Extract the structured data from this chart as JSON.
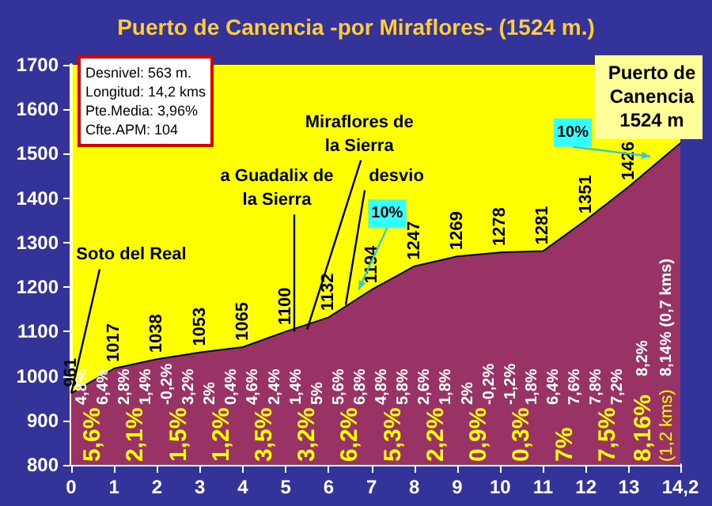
{
  "chart_data": {
    "type": "area",
    "title": "Puerto de Canencia -por Miraflores- (1524 m.)",
    "x": [
      0,
      1,
      2,
      3,
      4,
      5,
      6,
      7,
      8,
      9,
      10,
      11,
      12,
      13,
      14.2
    ],
    "values": [
      961,
      1017,
      1038,
      1053,
      1065,
      1100,
      1132,
      1194,
      1247,
      1269,
      1278,
      1281,
      1351,
      1426,
      1524
    ],
    "value_labels": [
      "961",
      "1017",
      "1038",
      "1053",
      "1065",
      "1100",
      "1132",
      "1194",
      "1247",
      "1269",
      "1278",
      "1281",
      "1351",
      "1426",
      null
    ],
    "color": "#993366",
    "xlim": [
      0,
      14.2
    ],
    "xticks": [
      0,
      1,
      2,
      3,
      4,
      5,
      6,
      7,
      8,
      9,
      10,
      11,
      12,
      13,
      {
        "value": 14.2,
        "label": "14,2"
      }
    ],
    "ylim": [
      800,
      1700
    ],
    "yticks": [
      800,
      900,
      1000,
      1100,
      1200,
      1300,
      1400,
      1500,
      1600,
      1700
    ],
    "annotations": [
      "Desnivel:   563 m.",
      "Longitud: 14,2 kms",
      "Pte.Media:  3,96%",
      "Cfte.APM: 104",
      {
        "text": "Soto del Real",
        "x": 0,
        "y": 961
      },
      {
        "text": "a Guadalix de la Sierra",
        "x": 5.2,
        "y": 1100
      },
      {
        "text": "Miraflores de la Sierra",
        "x": 5.5,
        "y": 1105
      },
      {
        "text": "desvio",
        "x": 6.4,
        "y": 1160
      },
      {
        "text": "10%",
        "x": 6.7,
        "y": 1180
      },
      {
        "text": "10%",
        "x": 13.5,
        "y": 1480
      },
      {
        "text": "Puerto de Canencia 1524 m",
        "x": 14.2,
        "y": 1524
      },
      "5,6%",
      "2,1%",
      "1,5%",
      "1,2%",
      "3,5%",
      "3,2%",
      "6,2%",
      "5,3%",
      "2,2%",
      "0,9%",
      "0,3%",
      "7%",
      "7,5%",
      "8,16%",
      "(1,2 kms)",
      "4,8%",
      "6,4%",
      "2,8%",
      "1,4%",
      "-0,2%",
      "3,2%",
      "2%",
      "0,4%",
      "4,6%",
      "2,4%",
      "1,4%",
      "5%",
      "5,6%",
      "6,8%",
      "4,8%",
      "5,8%",
      "2,6%",
      "1,8%",
      "2%",
      "-0,2%",
      "-1,2%",
      "1,8%",
      "6,4%",
      "7,6%",
      "7,8%",
      "7,2%",
      "8,2%",
      "8,14% (0,7 kms)"
    ]
  }
}
